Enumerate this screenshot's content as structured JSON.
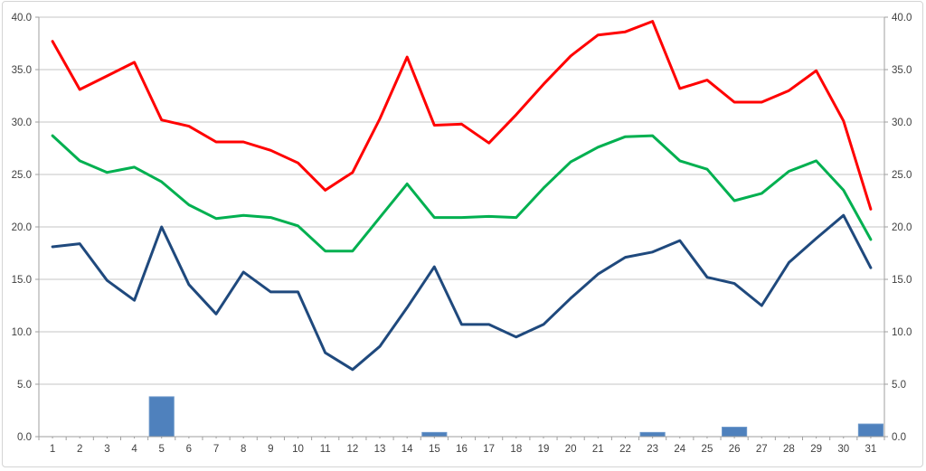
{
  "chart_data": {
    "type": "combo",
    "title": "",
    "xlabel": "",
    "ylabel": "",
    "legend": false,
    "grid": true,
    "x_categories": [
      "1",
      "2",
      "3",
      "4",
      "5",
      "6",
      "7",
      "8",
      "9",
      "10",
      "11",
      "12",
      "13",
      "14",
      "15",
      "16",
      "17",
      "18",
      "19",
      "20",
      "21",
      "22",
      "23",
      "24",
      "25",
      "26",
      "27",
      "28",
      "29",
      "30",
      "31"
    ],
    "y_axis_left": {
      "min": 0,
      "max": 40,
      "tick_step": 5,
      "tick_labels": [
        "0.0",
        "5.0",
        "10.0",
        "15.0",
        "20.0",
        "25.0",
        "30.0",
        "35.0",
        "40.0"
      ]
    },
    "y_axis_right": {
      "min": 0,
      "max": 40,
      "tick_step": 5,
      "tick_labels": [
        "0.0",
        "5.0",
        "10.0",
        "15.0",
        "20.0",
        "25.0",
        "30.0",
        "35.0",
        "40.0"
      ]
    },
    "series": [
      {
        "name": "daily-max-line",
        "type": "line",
        "color": "#ff0000",
        "values": [
          37.7,
          33.1,
          34.4,
          35.7,
          30.2,
          29.6,
          28.1,
          28.1,
          27.3,
          26.1,
          23.5,
          25.2,
          30.3,
          36.2,
          29.7,
          29.8,
          28.0,
          30.7,
          33.6,
          36.3,
          38.3,
          38.6,
          39.6,
          33.2,
          34.0,
          31.9,
          31.9,
          33.0,
          34.9,
          30.1,
          21.7
        ]
      },
      {
        "name": "daily-mean-line",
        "type": "line",
        "color": "#00b050",
        "values": [
          28.7,
          26.3,
          25.2,
          25.7,
          24.3,
          22.1,
          20.8,
          21.1,
          20.9,
          20.1,
          17.7,
          17.7,
          20.9,
          24.1,
          20.9,
          20.9,
          21.0,
          20.9,
          23.7,
          26.2,
          27.6,
          28.6,
          28.7,
          26.3,
          25.5,
          22.5,
          23.2,
          25.3,
          26.3,
          23.5,
          18.8
        ]
      },
      {
        "name": "daily-min-line",
        "type": "line",
        "color": "#1f497d",
        "values": [
          18.1,
          18.4,
          14.9,
          13.0,
          20.0,
          14.5,
          11.7,
          15.7,
          13.8,
          13.8,
          8.0,
          6.4,
          8.6,
          12.3,
          16.2,
          10.7,
          10.7,
          9.5,
          10.7,
          13.2,
          15.5,
          17.1,
          17.6,
          18.7,
          15.2,
          14.6,
          12.5,
          16.6,
          18.9,
          21.1,
          16.1
        ]
      },
      {
        "name": "precipitation-bars",
        "type": "bar",
        "color": "#4f81bd",
        "border_color": "#6b97c9",
        "values": [
          0,
          0,
          0,
          0,
          3.8,
          0,
          0,
          0,
          0,
          0,
          0,
          0,
          0,
          0,
          0.4,
          0,
          0,
          0,
          0,
          0,
          0,
          0,
          0.4,
          0,
          0,
          0.9,
          0,
          0,
          0,
          0,
          1.2
        ]
      }
    ],
    "style": {
      "gridline_color": "#c6c6c6",
      "axis_color": "#9f9f9f",
      "tick_label_color": "#3f3f3f",
      "background_color": "#ffffff",
      "frame_border_color": "#d4d4d4"
    }
  }
}
